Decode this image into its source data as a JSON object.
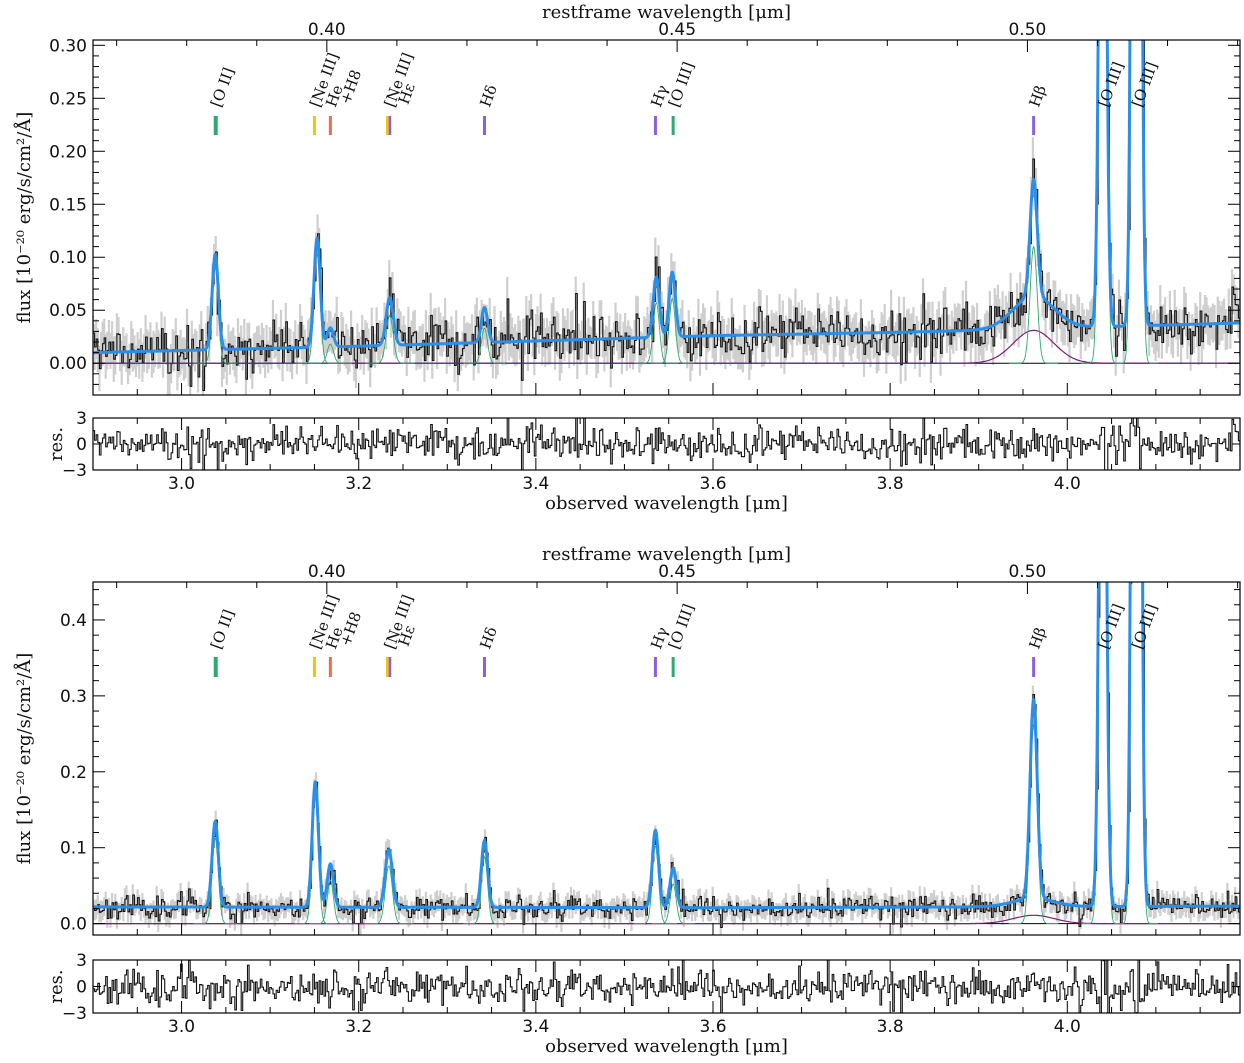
{
  "chart_data": [
    {
      "type": "line",
      "top_axis_label": "restframe wavelength [μm]",
      "top_ticks": [
        "0.40",
        "0.45",
        "0.50"
      ],
      "top_tick_values_um": [
        0.4,
        0.45,
        0.5
      ],
      "xlabel": "observed wavelength [μm]",
      "x_ticks": [
        "3.0",
        "3.2",
        "3.4",
        "3.6",
        "3.8",
        "4.0"
      ],
      "x_tick_values": [
        3.0,
        3.2,
        3.4,
        3.6,
        3.8,
        4.0
      ],
      "xlim": [
        2.9,
        4.195
      ],
      "ylabel": "flux [10⁻²⁰ erg/s/cm²/Å]",
      "ylim": [
        -0.03,
        0.305
      ],
      "y_ticks": [
        "0.00",
        "0.05",
        "0.10",
        "0.15",
        "0.20",
        "0.25",
        "0.30"
      ],
      "y_tick_values": [
        0.0,
        0.05,
        0.1,
        0.15,
        0.2,
        0.25,
        0.3
      ],
      "residual_label": "res.",
      "residual_ticks": [
        "3",
        "0",
        "−3"
      ],
      "residual_tick_values": [
        3,
        0,
        -3
      ],
      "continuum": {
        "x": [
          2.9,
          3.2,
          3.6,
          3.8,
          3.9,
          4.195
        ],
        "y": [
          0.01,
          0.016,
          0.026,
          0.029,
          0.031,
          0.038
        ]
      },
      "broad_component": {
        "center": 3.962,
        "amplitude": 0.031,
        "sigma": 0.023
      },
      "emission_lines": [
        {
          "label": "[O II]",
          "x": 3.038,
          "amp": 0.09,
          "sigma": 0.0035,
          "color": "#2eaa6e"
        },
        {
          "label": "[Ne III]",
          "x": 3.153,
          "amp": 0.103,
          "sigma": 0.0035,
          "color": "#2eaa6e"
        },
        {
          "label": "He+H8",
          "x": 3.168,
          "amp": 0.018,
          "sigma": 0.0035,
          "color": "#2eaa6e"
        },
        {
          "label": "[Ne III] + Hε",
          "x": 3.235,
          "amp": 0.045,
          "sigma": 0.004,
          "color": "#2eaa6e"
        },
        {
          "label": "Hδ",
          "x": 3.342,
          "amp": 0.033,
          "sigma": 0.0035,
          "color": "#2eaa6e"
        },
        {
          "label": "Hγ",
          "x": 3.536,
          "amp": 0.057,
          "sigma": 0.0035,
          "color": "#2eaa6e"
        },
        {
          "label": "[O III]",
          "x": 3.554,
          "amp": 0.061,
          "sigma": 0.0035,
          "color": "#2eaa6e"
        },
        {
          "label": "Hβ",
          "x": 3.962,
          "amp": 0.11,
          "sigma": 0.004,
          "color": "#2eaa6e"
        },
        {
          "label": "[O III]",
          "x": 4.04,
          "amp": 0.8,
          "sigma": 0.0035,
          "color": "#2eaa6e"
        },
        {
          "label": "[O III]",
          "x": 4.078,
          "amp": 2.4,
          "sigma": 0.0035,
          "color": "#2eaa6e"
        }
      ],
      "markers": [
        {
          "label": "[O II]",
          "x": 3.038,
          "colors": [
            "#2eaa6e"
          ]
        },
        {
          "label": "[Ne III]",
          "x": 3.15,
          "colors": [
            "#f5c400"
          ]
        },
        {
          "label": "He",
          "x": 3.168,
          "colors": [
            "#f06a50"
          ]
        },
        {
          "label": "+H8",
          "x": 3.168,
          "colors": []
        },
        {
          "label": "[Ne III]",
          "x": 3.234,
          "colors": [
            "#f5c400",
            "#8860e0"
          ]
        },
        {
          "label": "Hε",
          "x": 3.234,
          "colors": []
        },
        {
          "label": "Hδ",
          "x": 3.342,
          "colors": [
            "#8860e0"
          ]
        },
        {
          "label": "Hγ",
          "x": 3.535,
          "colors": [
            "#8860e0"
          ]
        },
        {
          "label": "[O III]",
          "x": 3.555,
          "colors": [
            "#2eaa6e"
          ]
        },
        {
          "label": "Hβ",
          "x": 3.962,
          "colors": [
            "#8860e0"
          ]
        },
        {
          "label": "[O III]",
          "x": 4.04,
          "colors": []
        },
        {
          "label": "[O III]",
          "x": 4.078,
          "colors": []
        }
      ],
      "noise": 0.012
    },
    {
      "type": "line",
      "top_axis_label": "restframe wavelength [μm]",
      "top_ticks": [
        "0.40",
        "0.45",
        "0.50"
      ],
      "top_tick_values_um": [
        0.4,
        0.45,
        0.5
      ],
      "xlabel": "observed wavelength [μm]",
      "x_ticks": [
        "3.0",
        "3.2",
        "3.4",
        "3.6",
        "3.8",
        "4.0"
      ],
      "x_tick_values": [
        3.0,
        3.2,
        3.4,
        3.6,
        3.8,
        4.0
      ],
      "xlim": [
        2.9,
        4.195
      ],
      "ylabel": "flux [10⁻²⁰ erg/s/cm²/Å]",
      "ylim": [
        -0.015,
        0.45
      ],
      "y_ticks": [
        "0.0",
        "0.1",
        "0.2",
        "0.3",
        "0.4"
      ],
      "y_tick_values": [
        0.0,
        0.1,
        0.2,
        0.3,
        0.4
      ],
      "residual_label": "res.",
      "residual_ticks": [
        "3",
        "0",
        "−3"
      ],
      "residual_tick_values": [
        3,
        0,
        -3
      ],
      "continuum": {
        "x": [
          2.9,
          3.6,
          4.195
        ],
        "y": [
          0.022,
          0.021,
          0.023
        ]
      },
      "broad_component": {
        "center": 3.962,
        "amplitude": 0.011,
        "sigma": 0.023
      },
      "emission_lines": [
        {
          "label": "[O II]",
          "x": 3.038,
          "amp": 0.113,
          "sigma": 0.0035,
          "color": "#2eaa6e"
        },
        {
          "label": "[Ne III]",
          "x": 3.151,
          "amp": 0.165,
          "sigma": 0.0035,
          "color": "#2eaa6e"
        },
        {
          "label": "He+H8",
          "x": 3.168,
          "amp": 0.057,
          "sigma": 0.0035,
          "color": "#2eaa6e"
        },
        {
          "label": "[Ne III] + Hε",
          "x": 3.234,
          "amp": 0.076,
          "sigma": 0.004,
          "color": "#2eaa6e"
        },
        {
          "label": "Hδ",
          "x": 3.342,
          "amp": 0.088,
          "sigma": 0.0035,
          "color": "#2eaa6e"
        },
        {
          "label": "Hγ",
          "x": 3.535,
          "amp": 0.102,
          "sigma": 0.0035,
          "color": "#2eaa6e"
        },
        {
          "label": "[O III]",
          "x": 3.555,
          "amp": 0.052,
          "sigma": 0.0035,
          "color": "#2eaa6e"
        },
        {
          "label": "Hβ",
          "x": 3.962,
          "amp": 0.262,
          "sigma": 0.004,
          "color": "#2eaa6e"
        },
        {
          "label": "[O III]",
          "x": 4.04,
          "amp": 1.1,
          "sigma": 0.0035,
          "color": "#2eaa6e"
        },
        {
          "label": "[O III]",
          "x": 4.078,
          "amp": 3.3,
          "sigma": 0.0035,
          "color": "#2eaa6e"
        }
      ],
      "markers": [
        {
          "label": "[O II]",
          "x": 3.038,
          "colors": [
            "#2eaa6e"
          ]
        },
        {
          "label": "[Ne III]",
          "x": 3.15,
          "colors": [
            "#f5c400"
          ]
        },
        {
          "label": "He",
          "x": 3.168,
          "colors": [
            "#f06a50"
          ]
        },
        {
          "label": "+H8",
          "x": 3.168,
          "colors": []
        },
        {
          "label": "[Ne III]",
          "x": 3.234,
          "colors": [
            "#f5c400",
            "#8860e0"
          ]
        },
        {
          "label": "Hε",
          "x": 3.234,
          "colors": []
        },
        {
          "label": "Hδ",
          "x": 3.342,
          "colors": [
            "#8860e0"
          ]
        },
        {
          "label": "Hγ",
          "x": 3.535,
          "colors": [
            "#8860e0"
          ]
        },
        {
          "label": "[O III]",
          "x": 3.555,
          "colors": [
            "#2eaa6e"
          ]
        },
        {
          "label": "Hβ",
          "x": 3.962,
          "colors": [
            "#8860e0"
          ]
        },
        {
          "label": "[O III]",
          "x": 4.04,
          "colors": []
        },
        {
          "label": "[O III]",
          "x": 4.078,
          "colors": []
        }
      ],
      "noise": 0.008
    }
  ],
  "colors": {
    "model": "#2a8fe8",
    "data": "#111111",
    "error_band": "#cfcfcf",
    "gaussian_components": "#2eaa6e",
    "broad_component": "#7a1f7a"
  }
}
